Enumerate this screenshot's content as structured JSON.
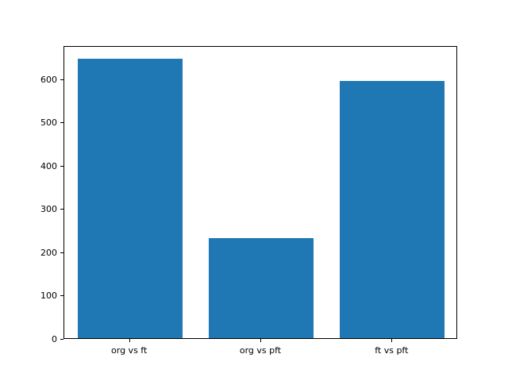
{
  "chart_data": {
    "type": "bar",
    "categories": [
      "org vs ft",
      "org vs pft",
      "ft vs pft"
    ],
    "values": [
      645,
      232,
      595
    ],
    "title": "",
    "xlabel": "",
    "ylabel": "",
    "ylim": [
      0,
      677
    ],
    "yticks": [
      0,
      100,
      200,
      300,
      400,
      500,
      600
    ],
    "bar_color": "#1f77b4",
    "grid": false,
    "legend": null
  }
}
